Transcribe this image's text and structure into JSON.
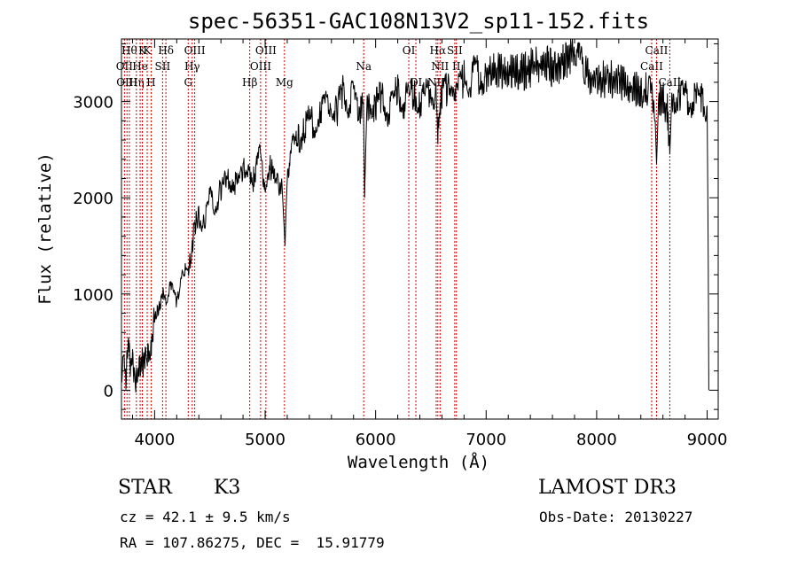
{
  "chart_data": {
    "type": "line",
    "title": "spec-56351-GAC108N13V2_sp11-152.fits",
    "xlabel": "Wavelength (Å)",
    "ylabel": "Flux (relative)",
    "xlim": [
      3700,
      9100
    ],
    "ylim": [
      -300,
      3650
    ],
    "xticks": [
      4000,
      5000,
      6000,
      7000,
      8000,
      9000
    ],
    "yticks": [
      0,
      1000,
      2000,
      3000
    ],
    "series": [
      {
        "name": "flux",
        "x": [
          3700,
          3720,
          3740,
          3760,
          3780,
          3800,
          3830,
          3860,
          3880,
          3900,
          3930,
          3950,
          3970,
          3990,
          4020,
          4050,
          4080,
          4100,
          4150,
          4200,
          4250,
          4300,
          4330,
          4360,
          4400,
          4450,
          4500,
          4550,
          4600,
          4650,
          4700,
          4750,
          4800,
          4850,
          4880,
          4900,
          4950,
          5000,
          5050,
          5100,
          5150,
          5180,
          5200,
          5250,
          5300,
          5350,
          5400,
          5450,
          5500,
          5550,
          5600,
          5650,
          5700,
          5750,
          5800,
          5850,
          5890,
          5900,
          5920,
          5950,
          6000,
          6050,
          6100,
          6150,
          6200,
          6250,
          6300,
          6350,
          6400,
          6450,
          6500,
          6550,
          6563,
          6600,
          6650,
          6700,
          6750,
          6800,
          6850,
          6900,
          6950,
          7000,
          7100,
          7200,
          7300,
          7400,
          7500,
          7600,
          7700,
          7800,
          7850,
          7900,
          8000,
          8100,
          8200,
          8300,
          8400,
          8450,
          8500,
          8530,
          8542,
          8560,
          8600,
          8640,
          8662,
          8680,
          8700,
          8750,
          8800,
          8850,
          8900,
          8950,
          9000,
          9010,
          9015
        ],
        "values": [
          100,
          400,
          150,
          500,
          250,
          300,
          100,
          200,
          350,
          250,
          400,
          300,
          500,
          700,
          800,
          900,
          1000,
          950,
          1100,
          900,
          1300,
          1200,
          1400,
          1700,
          1800,
          1750,
          2000,
          1900,
          2100,
          2150,
          2200,
          2100,
          2300,
          2350,
          2100,
          2250,
          2400,
          2200,
          2300,
          2100,
          2200,
          1500,
          2300,
          2500,
          2600,
          2700,
          2800,
          2750,
          2900,
          2950,
          3000,
          2900,
          3100,
          3000,
          3050,
          2900,
          3000,
          2000,
          2950,
          3000,
          2950,
          3050,
          2900,
          3000,
          3100,
          3000,
          3050,
          3100,
          3000,
          3050,
          3150,
          3000,
          2700,
          3100,
          3150,
          3200,
          3100,
          3250,
          3200,
          3300,
          3250,
          3300,
          3350,
          3300,
          3300,
          3350,
          3400,
          3350,
          3400,
          3550,
          3400,
          3300,
          3200,
          3250,
          3200,
          3150,
          3100,
          3150,
          3050,
          2800,
          2350,
          3000,
          3050,
          2900,
          2450,
          3000,
          3050,
          3100,
          3050,
          3000,
          3050,
          3000,
          2950,
          1300,
          0
        ]
      }
    ],
    "line_markers": [
      {
        "wl": 3727,
        "row": 1,
        "label": "OII"
      },
      {
        "wl": 3750,
        "row": 2,
        "label": "OIII"
      },
      {
        "wl": 3771,
        "row": 0,
        "label": "Hθ"
      },
      {
        "wl": 3835,
        "row": 2,
        "label": "Hη"
      },
      {
        "wl": 3869,
        "row": 1,
        "label": "He"
      },
      {
        "wl": 3889,
        "row": 0,
        "label": "K"
      },
      {
        "wl": 3933,
        "row": 0,
        "label": "K"
      },
      {
        "wl": 3968,
        "row": 2,
        "label": "H"
      },
      {
        "wl": 4072,
        "row": 1,
        "label": "SII"
      },
      {
        "wl": 4102,
        "row": 0,
        "label": "Hδ"
      },
      {
        "wl": 4304,
        "row": 2,
        "label": "G"
      },
      {
        "wl": 4340,
        "row": 1,
        "label": "Hγ"
      },
      {
        "wl": 4363,
        "row": 0,
        "label": "OIII"
      },
      {
        "wl": 4861,
        "row": 2,
        "label": "Hβ"
      },
      {
        "wl": 4959,
        "row": 1,
        "label": "OIII"
      },
      {
        "wl": 5007,
        "row": 0,
        "label": "OIII"
      },
      {
        "wl": 5175,
        "row": 2,
        "label": "Mg"
      },
      {
        "wl": 5892,
        "row": 1,
        "label": "Na"
      },
      {
        "wl": 6300,
        "row": 0,
        "label": "OI"
      },
      {
        "wl": 6364,
        "row": 2,
        "label": "OI"
      },
      {
        "wl": 6548,
        "row": 2,
        "label": "NII"
      },
      {
        "wl": 6563,
        "row": 0,
        "label": "Hα"
      },
      {
        "wl": 6583,
        "row": 1,
        "label": "NII"
      },
      {
        "wl": 6716,
        "row": 0,
        "label": "SII"
      },
      {
        "wl": 6731,
        "row": 1,
        "label": "II"
      },
      {
        "wl": 8498,
        "row": 1,
        "label": "CaII"
      },
      {
        "wl": 8542,
        "row": 0,
        "label": "CaII"
      },
      {
        "wl": 8662,
        "row": 2,
        "label": "CaII"
      }
    ]
  },
  "info": {
    "object_class": "STAR",
    "subclass": "K3",
    "survey": "LAMOST DR3",
    "cz": "cz = 42.1 ± 9.5 km/s",
    "obs_date": "Obs-Date: 20130227",
    "coords": "RA = 107.86275, DEC =  15.91779"
  }
}
